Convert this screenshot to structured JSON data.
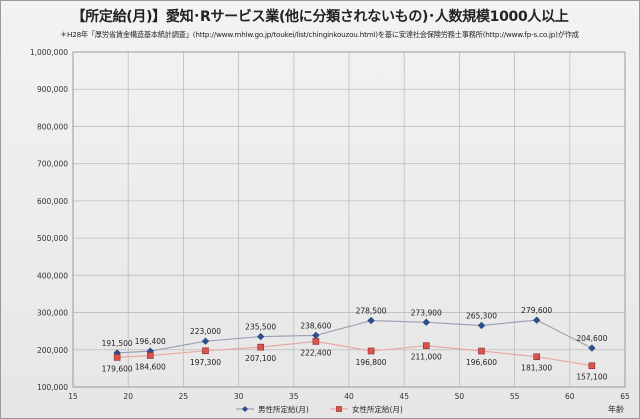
{
  "header": {
    "title": "【所定給(月)】愛知･Rサービス業(他に分類されないもの)･人数規模1000人以上",
    "source_note": "＊H28年「厚労省賃金構造基本統計調査」(http://www.mhlw.go.jp/toukei/list/chinginkouzou.html)を基に安達社会保険労務士事務所(http://www.fp-s.co.jp)が作成"
  },
  "chart_data": {
    "type": "line",
    "title": "【所定給(月)】愛知･Rサービス業(他に分類されないもの)･人数規模1000人以上",
    "xlabel": "年齢",
    "ylabel": "",
    "xlim": [
      15,
      65
    ],
    "ylim": [
      100000,
      1000000
    ],
    "x_ticks": [
      15,
      20,
      25,
      30,
      35,
      40,
      45,
      50,
      55,
      60,
      65
    ],
    "y_ticks": [
      100000,
      200000,
      300000,
      400000,
      500000,
      600000,
      700000,
      800000,
      900000,
      1000000
    ],
    "y_tick_labels": [
      "100,000",
      "200,000",
      "300,000",
      "400,000",
      "500,000",
      "600,000",
      "700,000",
      "800,000",
      "900,000",
      "1,000,000"
    ],
    "grid": true,
    "legend_position": "bottom",
    "series": [
      {
        "name": "男性所定給(月)",
        "color": "#2e4f8f",
        "line_color": "#9aa3b4",
        "marker": "diamond",
        "x": [
          19,
          22,
          27,
          32,
          37,
          42,
          47,
          52,
          57,
          62
        ],
        "values": [
          191500,
          196400,
          223000,
          235500,
          238600,
          278500,
          273900,
          265300,
          279600,
          204600
        ],
        "labels": [
          "191,500",
          "196,400",
          "223,000",
          "235,500",
          "238,600",
          "278,500",
          "273,900",
          "265,300",
          "279,600",
          "204,600"
        ]
      },
      {
        "name": "女性所定給(月)",
        "color": "#d9534f",
        "line_color": "#e8a9a5",
        "marker": "square",
        "x": [
          19,
          22,
          27,
          32,
          37,
          42,
          47,
          52,
          57,
          62
        ],
        "values": [
          179600,
          184600,
          197300,
          207100,
          222400,
          196800,
          211000,
          196600,
          181300,
          157100
        ],
        "labels": [
          "179,600",
          "184,600",
          "197,300",
          "207,100",
          "222,400",
          "196,800",
          "211,000",
          "196,600",
          "181,300",
          "157,100"
        ]
      }
    ]
  }
}
